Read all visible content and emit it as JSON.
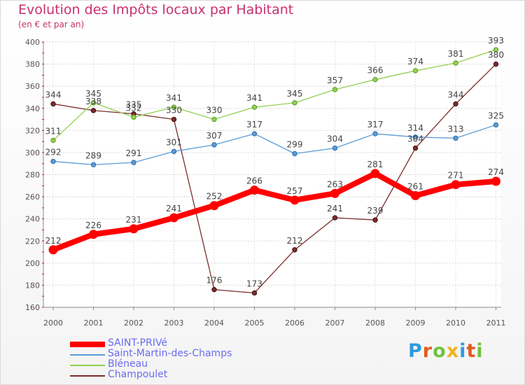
{
  "title": "Evolution des Impôts locaux par Habitant",
  "subtitle": "(en € et par an)",
  "logo_text": "Proxiti",
  "logo_colors": [
    "#2e9be0",
    "#e35a1f",
    "#6fc23a",
    "#f2b21c",
    "#2e9be0",
    "#e35a1f",
    "#6fc23a"
  ],
  "chart_data": {
    "type": "line",
    "x": [
      "2000",
      "2001",
      "2002",
      "2003",
      "2004",
      "2005",
      "2006",
      "2007",
      "2008",
      "2009",
      "2010",
      "2011"
    ],
    "y_ticks": [
      "160",
      "180",
      "200",
      "220",
      "240",
      "260",
      "280",
      "300",
      "320",
      "340",
      "360",
      "380",
      "400"
    ],
    "ylim": [
      160,
      400
    ],
    "grid": "horizontal",
    "legend_position": "bottom-left",
    "series": [
      {
        "name": "SAINT-PRIVé",
        "color": "#ff0000",
        "values": [
          212,
          226,
          231,
          241,
          252,
          266,
          257,
          263,
          281,
          261,
          271,
          274
        ],
        "labels": [
          "212",
          "226",
          "231",
          "241",
          "252",
          "266",
          "257",
          "263",
          "281",
          "261",
          "271",
          "274"
        ]
      },
      {
        "name": "Saint-Martin-des-Champs",
        "color": "#5b9bd5",
        "values": [
          292,
          289,
          291,
          301,
          307,
          317,
          299,
          304,
          317,
          314,
          313,
          325
        ],
        "labels": [
          "292",
          "289",
          "291",
          "301",
          "307",
          "317",
          "299",
          "304",
          "317",
          "314",
          "313",
          "325"
        ]
      },
      {
        "name": "Bléneau",
        "color": "#92d050",
        "values": [
          311,
          345,
          332,
          341,
          330,
          341,
          345,
          357,
          366,
          374,
          381,
          393
        ],
        "labels": [
          "311",
          "345",
          "332",
          "341",
          "330",
          "341",
          "345",
          "357",
          "366",
          "374",
          "381",
          "393"
        ]
      },
      {
        "name": "Champoulet",
        "color": "#7b2c2c",
        "values": [
          344,
          338,
          335,
          330,
          176,
          173,
          212,
          241,
          239,
          304,
          344,
          380
        ],
        "labels": [
          "344",
          "338",
          "335",
          "330",
          "176",
          "173",
          "212",
          "241",
          "239",
          "304",
          "344",
          "380"
        ]
      }
    ]
  }
}
